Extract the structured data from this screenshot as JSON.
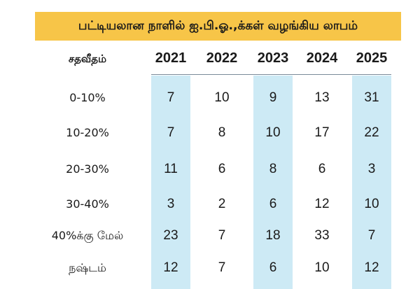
{
  "title": "பட்டியலான நாளில் ஐ.பி.ஓ.,க்கள் வழங்கிய லாபம்",
  "colors": {
    "title_bg": "#F7C548",
    "highlight_column": "#CDEAF5"
  },
  "table": {
    "header_label": "சதவீதம்",
    "years": [
      "2021",
      "2022",
      "2023",
      "2024",
      "2025"
    ],
    "highlighted_years": [
      "2021",
      "2023",
      "2025"
    ],
    "rows": [
      {
        "label": "0-10%",
        "values": [
          "7",
          "10",
          "9",
          "13",
          "31"
        ]
      },
      {
        "label": "10-20%",
        "values": [
          "7",
          "8",
          "10",
          "17",
          "22"
        ]
      },
      {
        "label": "20-30%",
        "values": [
          "11",
          "6",
          "8",
          "6",
          "3"
        ]
      },
      {
        "label": "30-40%",
        "values": [
          "3",
          "2",
          "6",
          "12",
          "10"
        ]
      },
      {
        "label": "40%க்கு மேல்",
        "values": [
          "23",
          "7",
          "18",
          "33",
          "7"
        ]
      },
      {
        "label": "நஷ்டம்",
        "values": [
          "12",
          "7",
          "6",
          "10",
          "12"
        ]
      }
    ]
  }
}
